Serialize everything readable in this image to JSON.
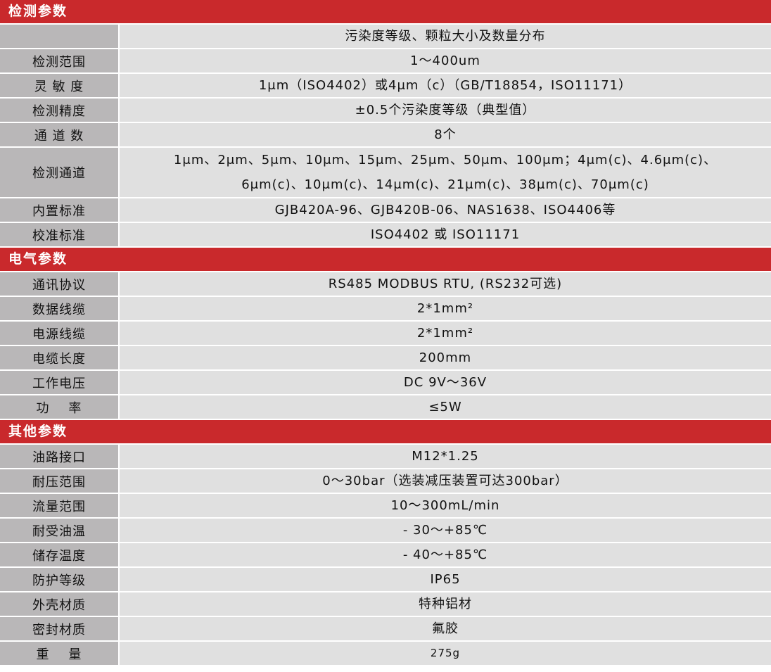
{
  "sections": [
    {
      "title": "检测参数",
      "rows": [
        {
          "label": "",
          "value": [
            "污染度等级、颗粒大小及数量分布"
          ]
        },
        {
          "label": "检测范围",
          "value": [
            "1～400um"
          ]
        },
        {
          "label": "灵 敏 度",
          "value": [
            "1μm（ISO4402）或4μm（c）（GB/T18854，ISO11171）"
          ]
        },
        {
          "label": "检测精度",
          "value": [
            "±0.5个污染度等级（典型值）"
          ]
        },
        {
          "label": "通 道 数",
          "value": [
            "8个"
          ]
        },
        {
          "label": "检测通道",
          "value": [
            "1μm、2μm、5μm、10μm、15μm、25μm、50μm、100μm；4μm(c)、4.6μm(c)、",
            "6μm(c)、10μm(c)、14μm(c)、21μm(c)、38μm(c)、70μm(c)"
          ]
        },
        {
          "label": "内置标准",
          "value": [
            "GJB420A-96、GJB420B-06、NAS1638、ISO4406等"
          ]
        },
        {
          "label": "校准标准",
          "value": [
            "ISO4402 或 ISO11171"
          ]
        }
      ]
    },
    {
      "title": "电气参数",
      "rows": [
        {
          "label": "通讯协议",
          "value": [
            "RS485 MODBUS RTU, (RS232可选)"
          ]
        },
        {
          "label": "数据线缆",
          "value": [
            "2*1mm²"
          ]
        },
        {
          "label": "电源线缆",
          "value": [
            "2*1mm²"
          ]
        },
        {
          "label": "电缆长度",
          "value": [
            "200mm"
          ]
        },
        {
          "label": "工作电压",
          "value": [
            "DC 9V～36V"
          ]
        },
        {
          "label": "功    率",
          "value": [
            "≤5W"
          ]
        }
      ]
    },
    {
      "title": "其他参数",
      "rows": [
        {
          "label": "油路接口",
          "value": [
            "M12*1.25"
          ]
        },
        {
          "label": "耐压范围",
          "value": [
            "0～30bar（选装减压装置可达300bar）"
          ]
        },
        {
          "label": "流量范围",
          "value": [
            "10～300mL/min"
          ]
        },
        {
          "label": "耐受油温",
          "value": [
            "- 30～+85℃"
          ]
        },
        {
          "label": "储存温度",
          "value": [
            "- 40～+85℃"
          ]
        },
        {
          "label": "防护等级",
          "value": [
            "IP65"
          ]
        },
        {
          "label": "外壳材质",
          "value": [
            "特种铝材"
          ]
        },
        {
          "label": "密封材质",
          "value": [
            "氟胶"
          ]
        },
        {
          "label": "重    量",
          "value": [
            "275g"
          ]
        }
      ]
    }
  ],
  "colors": {
    "header": "#c9292c",
    "label_bg": "#b9b7b8",
    "value_bg": "#e0e0e0"
  }
}
